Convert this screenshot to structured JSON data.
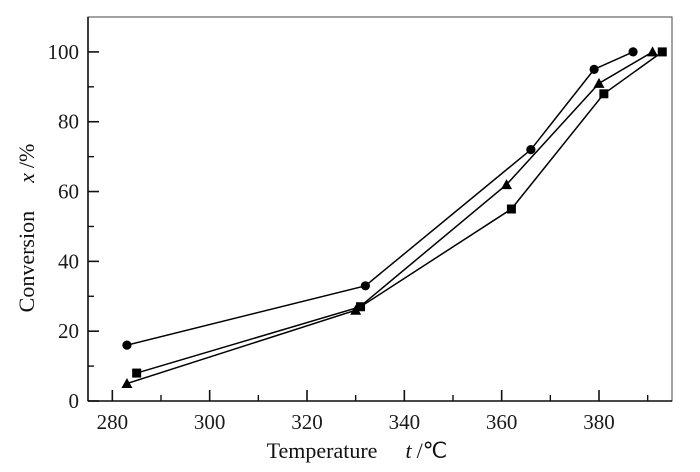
{
  "chart_data": {
    "type": "line",
    "title": "",
    "xlabel_prefix": "Temperature",
    "xlabel_symbol": "t",
    "xlabel_unit": "/℃",
    "ylabel_prefix": "Conversion",
    "ylabel_symbol": "x",
    "ylabel_unit": "/%",
    "xlim": [
      275,
      395
    ],
    "ylim": [
      0,
      110
    ],
    "x_major_ticks": [
      280,
      300,
      320,
      340,
      360,
      380
    ],
    "x_minor_ticks": [
      290,
      310,
      330,
      350,
      370,
      390
    ],
    "y_major_ticks": [
      0,
      20,
      40,
      60,
      80,
      100
    ],
    "y_minor_ticks": [
      10,
      30,
      50,
      70,
      90
    ],
    "grid": false,
    "legend": "none",
    "line_color": "#000000",
    "frame_color": "#555555",
    "axis_color": "#111111",
    "background": "#ffffff",
    "series": [
      {
        "name": "circle-series",
        "marker": "circle",
        "points": [
          [
            283,
            16
          ],
          [
            332,
            33
          ],
          [
            366,
            72
          ],
          [
            379,
            95
          ],
          [
            387,
            100
          ]
        ]
      },
      {
        "name": "triangle-series",
        "marker": "triangle",
        "points": [
          [
            283,
            5
          ],
          [
            330,
            26
          ],
          [
            361,
            62
          ],
          [
            380,
            91
          ],
          [
            391,
            100
          ]
        ]
      },
      {
        "name": "square-series",
        "marker": "square",
        "points": [
          [
            285,
            8
          ],
          [
            331,
            27
          ],
          [
            362,
            55
          ],
          [
            381,
            88
          ],
          [
            393,
            100
          ]
        ]
      }
    ]
  }
}
